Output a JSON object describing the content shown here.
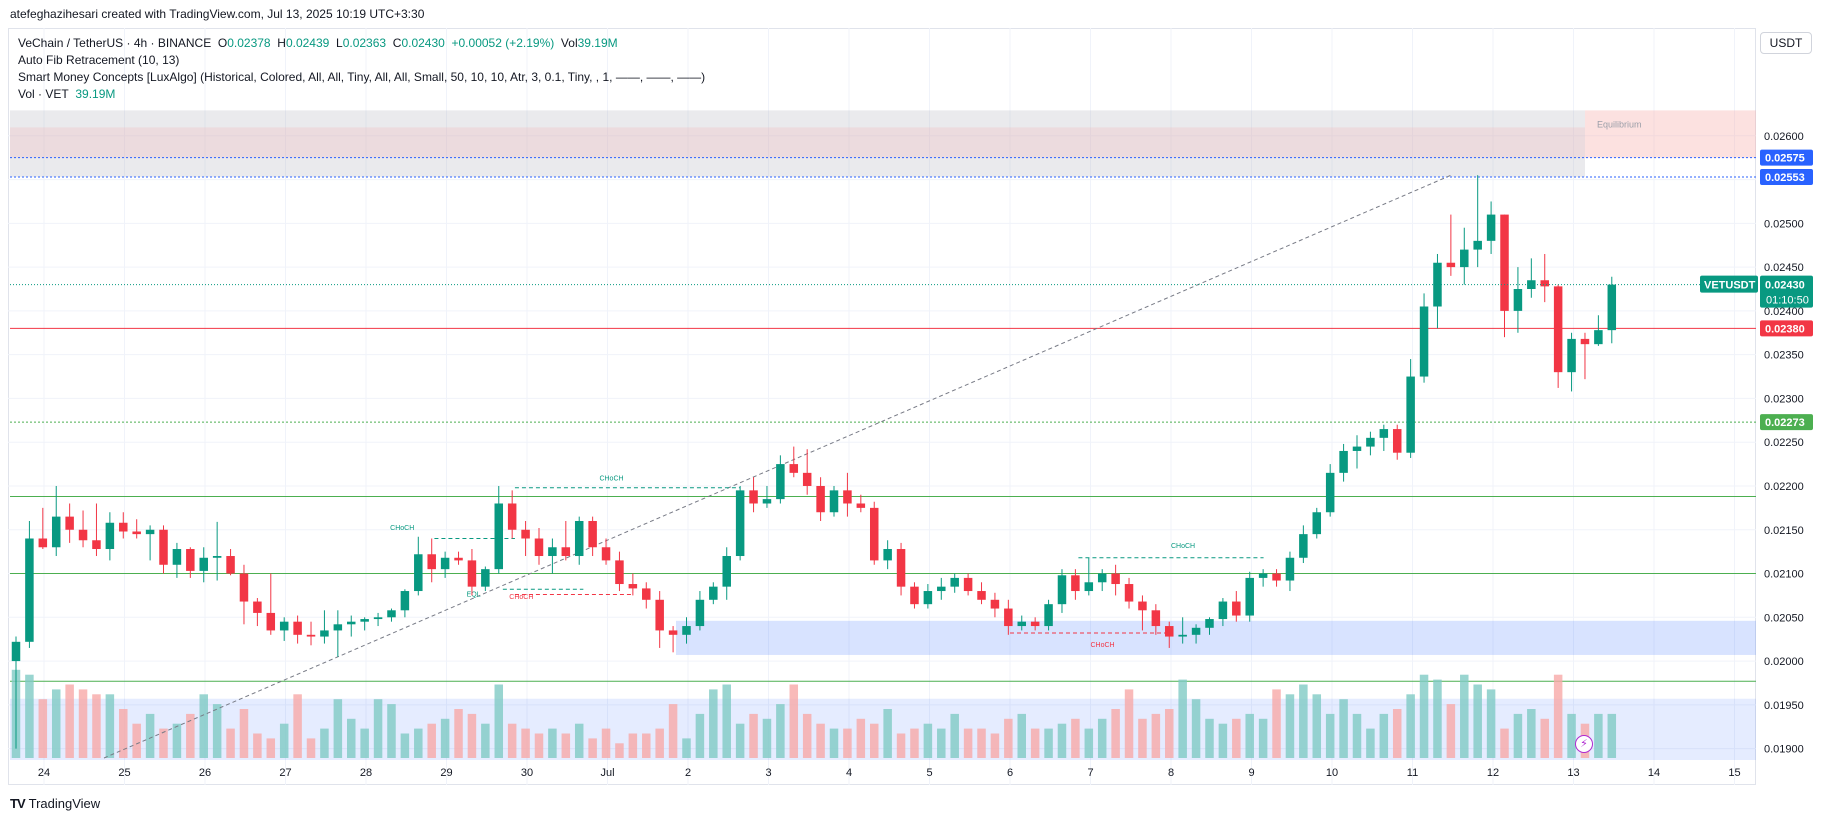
{
  "header": {
    "credit": "atefeghazihesari created with TradingView.com, Jul 13, 2025 10:19 UTC+3:30"
  },
  "legend": {
    "symbol": "VeChain / TetherUS · 4h · BINANCE",
    "o_label": "O",
    "o": "0.02378",
    "h_label": "H",
    "h": "0.02439",
    "l_label": "L",
    "l": "0.02363",
    "c_label": "C",
    "c": "0.02430",
    "change": "+0.00052 (+2.19%)",
    "vol_label": "Vol",
    "vol": "39.19M",
    "indicator1": "Auto Fib Retracement (10, 13)",
    "indicator2": "Smart Money Concepts [LuxAlgo] (Historical, Colored, All, All, Tiny, All, All, Small, 50, 10, 10, Atr, 3, 0.1, Tiny, , 1, ——, ——, ——)",
    "indicator3_label": "Vol · VET",
    "indicator3_value": "39.19M"
  },
  "currency": "USDT",
  "footer": {
    "brand": "TradingView",
    "mark": "TV"
  },
  "colors": {
    "up": "#089981",
    "down": "#f23645",
    "up_light": "#80cbc4",
    "down_light": "#f7a9a7",
    "grid": "#f0f3fa",
    "blue_zone": "#2962ff",
    "fib_green": "#4caf50",
    "fib_red": "#f23645",
    "fib_blue": "#2962ff"
  },
  "chart_data": {
    "type": "candlestick",
    "title": "VeChain / TetherUS · 4h · BINANCE",
    "xlabel": "",
    "ylabel": "USDT",
    "ylim": [
      0.01887,
      0.02698
    ],
    "x_ticks": [
      "24",
      "25",
      "26",
      "27",
      "28",
      "29",
      "30",
      "Jul",
      "2",
      "3",
      "4",
      "5",
      "6",
      "7",
      "8",
      "9",
      "10",
      "11",
      "12",
      "13",
      "14",
      "15"
    ],
    "y_ticks": [
      "0.02600",
      "0.02550",
      "0.02500",
      "0.02450",
      "0.02400",
      "0.02350",
      "0.02300",
      "0.02250",
      "0.02200",
      "0.02150",
      "0.02100",
      "0.02050",
      "0.02000",
      "0.01950",
      "0.01900"
    ],
    "price_levels": [
      {
        "label": "0.02575",
        "value": 0.02575,
        "color": "#2962ff",
        "style": "dotted"
      },
      {
        "label": "0.02553",
        "value": 0.02553,
        "color": "#2962ff",
        "style": "dotted"
      },
      {
        "label": "0.02380",
        "value": 0.0238,
        "color": "#f23645",
        "style": "solid"
      },
      {
        "label": "0.02273",
        "value": 0.02273,
        "color": "#4caf50",
        "style": "dotted"
      }
    ],
    "current_price": {
      "symbol": "VETUSDT",
      "value": 0.0243,
      "label": "0.02430",
      "countdown": "01:10:50"
    },
    "fib_lines": [
      0.02188,
      0.021,
      0.01977
    ],
    "zones": [
      {
        "name": "premium-zone",
        "top": 0.02629,
        "bottom": 0.02553,
        "label": ""
      },
      {
        "name": "equilibrium-zone",
        "top": 0.02629,
        "bottom": 0.02575,
        "label": "Equilibrium"
      },
      {
        "name": "demand-zone",
        "top": 0.02046,
        "bottom": 0.02007,
        "label": ""
      },
      {
        "name": "discount-zone",
        "top": 0.01957,
        "bottom": 0.01887,
        "label": ""
      }
    ],
    "structure_labels": [
      {
        "text": "CHoCH",
        "x_day": 30.9,
        "price": 0.02206,
        "color": "#089981"
      },
      {
        "text": "CHoCH",
        "x_day": 28.3,
        "price": 0.0215,
        "color": "#089981"
      },
      {
        "text": "EQL",
        "x_day": 29.25,
        "price": 0.02074,
        "color": "#089981"
      },
      {
        "text": "CHoCH",
        "x_day": 29.78,
        "price": 0.02071,
        "color": "#f23645"
      },
      {
        "text": "CHoCH",
        "x_day": 38.0,
        "price": 0.02129,
        "color": "#089981"
      },
      {
        "text": "CHoCH",
        "x_day": 37.0,
        "price": 0.02016,
        "color": "#f23645"
      }
    ],
    "candles": [
      {
        "o": 0.02,
        "h": 0.02028,
        "l": 0.019,
        "c": 0.02022
      },
      {
        "o": 0.02022,
        "h": 0.0216,
        "l": 0.02015,
        "c": 0.0214
      },
      {
        "o": 0.0214,
        "h": 0.02175,
        "l": 0.02128,
        "c": 0.0213
      },
      {
        "o": 0.0213,
        "h": 0.022,
        "l": 0.0212,
        "c": 0.02165
      },
      {
        "o": 0.02165,
        "h": 0.0218,
        "l": 0.02135,
        "c": 0.0215
      },
      {
        "o": 0.0215,
        "h": 0.02172,
        "l": 0.0213,
        "c": 0.02138
      },
      {
        "o": 0.02138,
        "h": 0.0218,
        "l": 0.0212,
        "c": 0.02128
      },
      {
        "o": 0.02128,
        "h": 0.0217,
        "l": 0.02115,
        "c": 0.02158
      },
      {
        "o": 0.02158,
        "h": 0.0217,
        "l": 0.0214,
        "c": 0.02148
      },
      {
        "o": 0.02148,
        "h": 0.02162,
        "l": 0.0214,
        "c": 0.02145
      },
      {
        "o": 0.02145,
        "h": 0.02155,
        "l": 0.02115,
        "c": 0.0215
      },
      {
        "o": 0.0215,
        "h": 0.02155,
        "l": 0.021,
        "c": 0.0211
      },
      {
        "o": 0.0211,
        "h": 0.02135,
        "l": 0.02095,
        "c": 0.02128
      },
      {
        "o": 0.02128,
        "h": 0.0213,
        "l": 0.02095,
        "c": 0.02103
      },
      {
        "o": 0.02103,
        "h": 0.0213,
        "l": 0.0209,
        "c": 0.02118
      },
      {
        "o": 0.02118,
        "h": 0.02159,
        "l": 0.02092,
        "c": 0.0212
      },
      {
        "o": 0.0212,
        "h": 0.02128,
        "l": 0.02098,
        "c": 0.021
      },
      {
        "o": 0.021,
        "h": 0.0211,
        "l": 0.02042,
        "c": 0.02068
      },
      {
        "o": 0.02068,
        "h": 0.02072,
        "l": 0.0204,
        "c": 0.02055
      },
      {
        "o": 0.02055,
        "h": 0.021,
        "l": 0.0203,
        "c": 0.02035
      },
      {
        "o": 0.02035,
        "h": 0.0205,
        "l": 0.02023,
        "c": 0.02045
      },
      {
        "o": 0.02045,
        "h": 0.02052,
        "l": 0.0202,
        "c": 0.0203
      },
      {
        "o": 0.0203,
        "h": 0.02045,
        "l": 0.02018,
        "c": 0.02028
      },
      {
        "o": 0.02028,
        "h": 0.02058,
        "l": 0.0202,
        "c": 0.02035
      },
      {
        "o": 0.02035,
        "h": 0.02058,
        "l": 0.02005,
        "c": 0.02042
      },
      {
        "o": 0.02042,
        "h": 0.02052,
        "l": 0.02028,
        "c": 0.02045
      },
      {
        "o": 0.02045,
        "h": 0.0205,
        "l": 0.02035,
        "c": 0.02048
      },
      {
        "o": 0.02048,
        "h": 0.02055,
        "l": 0.0204,
        "c": 0.0205
      },
      {
        "o": 0.0205,
        "h": 0.0206,
        "l": 0.02045,
        "c": 0.02058
      },
      {
        "o": 0.02058,
        "h": 0.02082,
        "l": 0.0205,
        "c": 0.0208
      },
      {
        "o": 0.0208,
        "h": 0.02142,
        "l": 0.02075,
        "c": 0.02122
      },
      {
        "o": 0.02122,
        "h": 0.0214,
        "l": 0.0209,
        "c": 0.02105
      },
      {
        "o": 0.02105,
        "h": 0.02125,
        "l": 0.02095,
        "c": 0.02118
      },
      {
        "o": 0.02118,
        "h": 0.02125,
        "l": 0.0211,
        "c": 0.02115
      },
      {
        "o": 0.02115,
        "h": 0.02128,
        "l": 0.02075,
        "c": 0.02085
      },
      {
        "o": 0.02085,
        "h": 0.02108,
        "l": 0.0208,
        "c": 0.02105
      },
      {
        "o": 0.02105,
        "h": 0.022,
        "l": 0.021,
        "c": 0.0218
      },
      {
        "o": 0.0218,
        "h": 0.02195,
        "l": 0.0214,
        "c": 0.0215
      },
      {
        "o": 0.0215,
        "h": 0.0216,
        "l": 0.0212,
        "c": 0.0214
      },
      {
        "o": 0.0214,
        "h": 0.02152,
        "l": 0.0211,
        "c": 0.0212
      },
      {
        "o": 0.0212,
        "h": 0.0214,
        "l": 0.021,
        "c": 0.0213
      },
      {
        "o": 0.0213,
        "h": 0.0216,
        "l": 0.02115,
        "c": 0.0212
      },
      {
        "o": 0.0212,
        "h": 0.02165,
        "l": 0.0211,
        "c": 0.0216
      },
      {
        "o": 0.0216,
        "h": 0.02165,
        "l": 0.0212,
        "c": 0.0213
      },
      {
        "o": 0.0213,
        "h": 0.0214,
        "l": 0.0211,
        "c": 0.02115
      },
      {
        "o": 0.02115,
        "h": 0.02125,
        "l": 0.0208,
        "c": 0.02088
      },
      {
        "o": 0.02088,
        "h": 0.021,
        "l": 0.02075,
        "c": 0.02083
      },
      {
        "o": 0.02083,
        "h": 0.0209,
        "l": 0.0206,
        "c": 0.0207
      },
      {
        "o": 0.0207,
        "h": 0.0208,
        "l": 0.02015,
        "c": 0.02035
      },
      {
        "o": 0.02035,
        "h": 0.0204,
        "l": 0.0201,
        "c": 0.0203
      },
      {
        "o": 0.0203,
        "h": 0.0205,
        "l": 0.0202,
        "c": 0.0204
      },
      {
        "o": 0.0204,
        "h": 0.0208,
        "l": 0.02035,
        "c": 0.0207
      },
      {
        "o": 0.0207,
        "h": 0.0209,
        "l": 0.02065,
        "c": 0.02085
      },
      {
        "o": 0.02085,
        "h": 0.0213,
        "l": 0.0207,
        "c": 0.0212
      },
      {
        "o": 0.0212,
        "h": 0.022,
        "l": 0.02115,
        "c": 0.02195
      },
      {
        "o": 0.02195,
        "h": 0.0221,
        "l": 0.0217,
        "c": 0.0218
      },
      {
        "o": 0.0218,
        "h": 0.022,
        "l": 0.02175,
        "c": 0.02185
      },
      {
        "o": 0.02185,
        "h": 0.02235,
        "l": 0.0218,
        "c": 0.02225
      },
      {
        "o": 0.02225,
        "h": 0.02245,
        "l": 0.0221,
        "c": 0.02215
      },
      {
        "o": 0.02215,
        "h": 0.02242,
        "l": 0.0219,
        "c": 0.022
      },
      {
        "o": 0.022,
        "h": 0.0221,
        "l": 0.0216,
        "c": 0.0217
      },
      {
        "o": 0.0217,
        "h": 0.022,
        "l": 0.02165,
        "c": 0.02195
      },
      {
        "o": 0.02195,
        "h": 0.02215,
        "l": 0.02165,
        "c": 0.0218
      },
      {
        "o": 0.0218,
        "h": 0.0219,
        "l": 0.0217,
        "c": 0.02175
      },
      {
        "o": 0.02175,
        "h": 0.02182,
        "l": 0.0211,
        "c": 0.02115
      },
      {
        "o": 0.02115,
        "h": 0.02138,
        "l": 0.02105,
        "c": 0.02128
      },
      {
        "o": 0.02128,
        "h": 0.02135,
        "l": 0.02075,
        "c": 0.02085
      },
      {
        "o": 0.02085,
        "h": 0.0209,
        "l": 0.0206,
        "c": 0.02065
      },
      {
        "o": 0.02065,
        "h": 0.02088,
        "l": 0.0206,
        "c": 0.0208
      },
      {
        "o": 0.0208,
        "h": 0.02095,
        "l": 0.0207,
        "c": 0.02085
      },
      {
        "o": 0.02085,
        "h": 0.021,
        "l": 0.02078,
        "c": 0.02095
      },
      {
        "o": 0.02095,
        "h": 0.021,
        "l": 0.02075,
        "c": 0.0208
      },
      {
        "o": 0.0208,
        "h": 0.0209,
        "l": 0.02065,
        "c": 0.0207
      },
      {
        "o": 0.0207,
        "h": 0.02078,
        "l": 0.0205,
        "c": 0.0206
      },
      {
        "o": 0.0206,
        "h": 0.0207,
        "l": 0.0203,
        "c": 0.0204
      },
      {
        "o": 0.0204,
        "h": 0.02052,
        "l": 0.02035,
        "c": 0.02045
      },
      {
        "o": 0.02045,
        "h": 0.0205,
        "l": 0.02035,
        "c": 0.0204
      },
      {
        "o": 0.0204,
        "h": 0.0207,
        "l": 0.02035,
        "c": 0.02065
      },
      {
        "o": 0.02065,
        "h": 0.02105,
        "l": 0.02055,
        "c": 0.02098
      },
      {
        "o": 0.02098,
        "h": 0.02105,
        "l": 0.0207,
        "c": 0.0208
      },
      {
        "o": 0.0208,
        "h": 0.02118,
        "l": 0.02075,
        "c": 0.0209
      },
      {
        "o": 0.0209,
        "h": 0.02105,
        "l": 0.0208,
        "c": 0.021
      },
      {
        "o": 0.021,
        "h": 0.0211,
        "l": 0.02075,
        "c": 0.02088
      },
      {
        "o": 0.02088,
        "h": 0.02095,
        "l": 0.0206,
        "c": 0.02068
      },
      {
        "o": 0.02068,
        "h": 0.02075,
        "l": 0.02035,
        "c": 0.02058
      },
      {
        "o": 0.02058,
        "h": 0.02065,
        "l": 0.0203,
        "c": 0.0204
      },
      {
        "o": 0.0204,
        "h": 0.02045,
        "l": 0.02015,
        "c": 0.02028
      },
      {
        "o": 0.02028,
        "h": 0.0205,
        "l": 0.0202,
        "c": 0.0203
      },
      {
        "o": 0.0203,
        "h": 0.02042,
        "l": 0.0202,
        "c": 0.02038
      },
      {
        "o": 0.02038,
        "h": 0.0205,
        "l": 0.0203,
        "c": 0.02048
      },
      {
        "o": 0.02048,
        "h": 0.02072,
        "l": 0.0204,
        "c": 0.02068
      },
      {
        "o": 0.02068,
        "h": 0.0208,
        "l": 0.02045,
        "c": 0.02052
      },
      {
        "o": 0.02052,
        "h": 0.02102,
        "l": 0.02045,
        "c": 0.02095
      },
      {
        "o": 0.02095,
        "h": 0.02105,
        "l": 0.02085,
        "c": 0.021
      },
      {
        "o": 0.021,
        "h": 0.02105,
        "l": 0.02085,
        "c": 0.02092
      },
      {
        "o": 0.02092,
        "h": 0.02125,
        "l": 0.0208,
        "c": 0.02118
      },
      {
        "o": 0.02118,
        "h": 0.02155,
        "l": 0.02112,
        "c": 0.02145
      },
      {
        "o": 0.02145,
        "h": 0.02175,
        "l": 0.0214,
        "c": 0.0217
      },
      {
        "o": 0.0217,
        "h": 0.02225,
        "l": 0.02165,
        "c": 0.02215
      },
      {
        "o": 0.02215,
        "h": 0.02248,
        "l": 0.02205,
        "c": 0.0224
      },
      {
        "o": 0.0224,
        "h": 0.02258,
        "l": 0.0222,
        "c": 0.02245
      },
      {
        "o": 0.02245,
        "h": 0.02262,
        "l": 0.02235,
        "c": 0.02255
      },
      {
        "o": 0.02255,
        "h": 0.0227,
        "l": 0.0224,
        "c": 0.02265
      },
      {
        "o": 0.02265,
        "h": 0.0227,
        "l": 0.0223,
        "c": 0.02238
      },
      {
        "o": 0.02238,
        "h": 0.02345,
        "l": 0.02232,
        "c": 0.02325
      },
      {
        "o": 0.02325,
        "h": 0.0242,
        "l": 0.02318,
        "c": 0.02405
      },
      {
        "o": 0.02405,
        "h": 0.02465,
        "l": 0.0238,
        "c": 0.02455
      },
      {
        "o": 0.02455,
        "h": 0.0251,
        "l": 0.0244,
        "c": 0.0245
      },
      {
        "o": 0.0245,
        "h": 0.02495,
        "l": 0.0243,
        "c": 0.0247
      },
      {
        "o": 0.0247,
        "h": 0.02555,
        "l": 0.0245,
        "c": 0.0248
      },
      {
        "o": 0.0248,
        "h": 0.02525,
        "l": 0.02465,
        "c": 0.0251
      },
      {
        "o": 0.0251,
        "h": 0.0251,
        "l": 0.0237,
        "c": 0.024
      },
      {
        "o": 0.024,
        "h": 0.0245,
        "l": 0.02375,
        "c": 0.02425
      },
      {
        "o": 0.02425,
        "h": 0.0246,
        "l": 0.02415,
        "c": 0.02435
      },
      {
        "o": 0.02435,
        "h": 0.02465,
        "l": 0.0241,
        "c": 0.02428
      },
      {
        "o": 0.02428,
        "h": 0.0243,
        "l": 0.02312,
        "c": 0.0233
      },
      {
        "o": 0.0233,
        "h": 0.02375,
        "l": 0.02308,
        "c": 0.02368
      },
      {
        "o": 0.02368,
        "h": 0.02375,
        "l": 0.02322,
        "c": 0.02362
      },
      {
        "o": 0.02362,
        "h": 0.02395,
        "l": 0.0236,
        "c": 0.02378
      },
      {
        "o": 0.02378,
        "h": 0.02439,
        "l": 0.02363,
        "c": 0.0243
      }
    ],
    "volume": [
      18,
      17,
      12,
      14,
      15,
      14,
      13,
      13,
      10,
      7,
      9,
      6,
      7,
      9,
      13,
      11,
      6,
      10,
      5,
      4,
      7,
      13,
      4,
      6,
      12,
      8,
      6,
      12,
      11,
      5,
      6,
      7,
      8,
      10,
      9,
      7,
      15,
      7,
      6,
      5,
      6,
      5,
      7,
      4,
      6,
      3,
      5,
      5,
      6,
      11,
      4,
      9,
      14,
      15,
      7,
      9,
      8,
      11,
      15,
      9,
      7,
      6,
      6,
      8,
      7,
      10,
      5,
      6,
      7,
      6,
      9,
      6,
      6,
      5,
      8,
      9,
      6,
      6,
      7,
      8,
      6,
      8,
      10,
      14,
      8,
      9,
      10,
      16,
      12,
      8,
      7,
      8,
      9,
      8,
      14,
      13,
      15,
      13,
      9,
      12,
      9,
      6,
      9,
      10,
      13,
      17,
      16,
      11,
      17,
      15,
      14,
      6,
      9,
      10,
      8,
      17,
      9,
      7,
      9,
      9
    ]
  }
}
